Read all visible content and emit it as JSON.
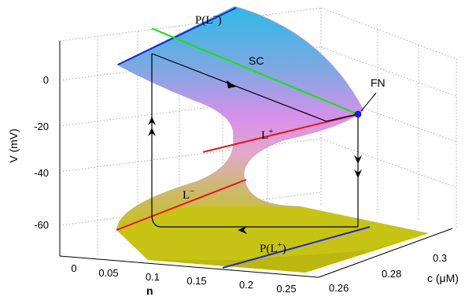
{
  "axes": {
    "z_label": "V (mV)",
    "x_label": "n",
    "y_label": "c (μM)",
    "z_ticks": [
      "0",
      "-20",
      "-40",
      "-60"
    ],
    "x_ticks": [
      "0",
      "0.05",
      "0.1",
      "0.15",
      "0.2",
      "0.25"
    ],
    "y_ticks": [
      "0.26",
      "0.28",
      "0.3"
    ]
  },
  "labels": {
    "p_l_minus": "P(L",
    "p_l_minus_sup": "−",
    "p_l_minus_close": ")",
    "sc": "SC",
    "fn": "FN",
    "l_plus": "L",
    "l_plus_sup": "+",
    "l_minus": "L",
    "l_minus_sup": "−",
    "p_l_plus": "P(L",
    "p_l_plus_sup": "+",
    "p_l_plus_close": ")"
  },
  "colors": {
    "top_sheet": "#37b7e4",
    "middle_sheet": "#d98ee9",
    "bottom_sheet": "#c7c316",
    "l_plus": "#e8141c",
    "l_minus": "#e8141c",
    "sc": "#22dd22",
    "p_lines": "#1b27d6",
    "fn_point": "#1a1aff",
    "trajectory": "#000000"
  }
}
